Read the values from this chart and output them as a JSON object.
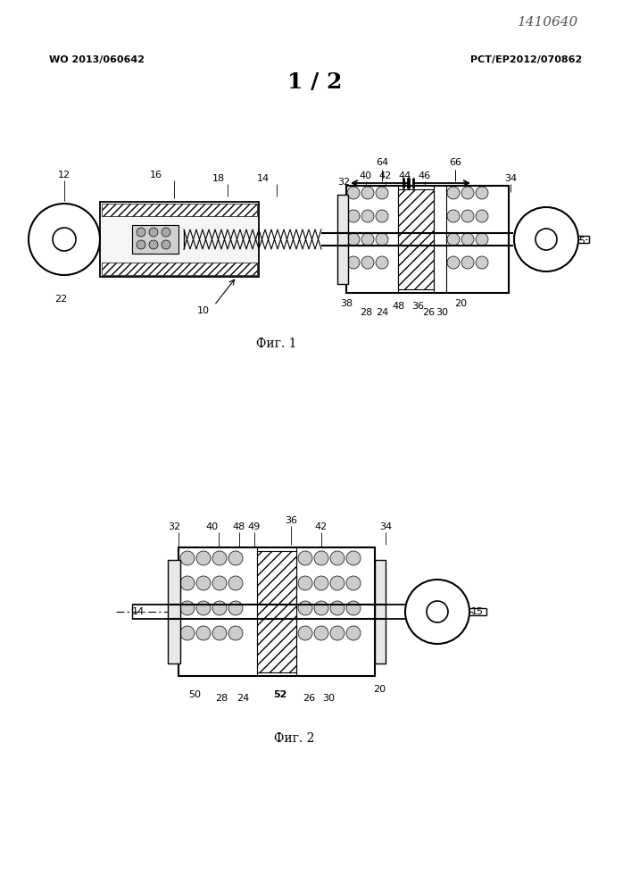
{
  "bg_color": "#ffffff",
  "line_color": "#000000",
  "header_left": "WO 2013/060642",
  "header_right": "PCT/EP2012/070862",
  "page_num": "1 / 2",
  "stamp": "1410640",
  "fig1_caption": "Фиг. 1",
  "fig2_caption": "Фиг. 2"
}
